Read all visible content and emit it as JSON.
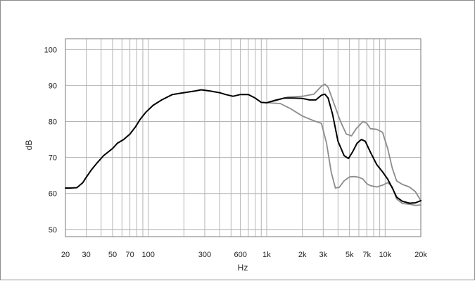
{
  "chart_data": {
    "type": "line",
    "title": "",
    "xlabel": "Hz",
    "ylabel": "dB",
    "x_scale": "log",
    "xlim": [
      20,
      20000
    ],
    "ylim": [
      48,
      103
    ],
    "grid": true,
    "legend": "none",
    "x_ticks": [
      {
        "value": 20,
        "label": "20"
      },
      {
        "value": 30,
        "label": "30"
      },
      {
        "value": 50,
        "label": "50"
      },
      {
        "value": 70,
        "label": "70"
      },
      {
        "value": 100,
        "label": "100"
      },
      {
        "value": 300,
        "label": "300"
      },
      {
        "value": 600,
        "label": "600"
      },
      {
        "value": 1000,
        "label": "1k"
      },
      {
        "value": 2000,
        "label": "2k"
      },
      {
        "value": 3000,
        "label": "3k"
      },
      {
        "value": 5000,
        "label": "5k"
      },
      {
        "value": 7000,
        "label": "7k"
      },
      {
        "value": 10000,
        "label": "10k"
      },
      {
        "value": 20000,
        "label": "20k"
      }
    ],
    "y_ticks": [
      {
        "value": 50,
        "label": "50"
      },
      {
        "value": 60,
        "label": "60"
      },
      {
        "value": 70,
        "label": "70"
      },
      {
        "value": 80,
        "label": "80"
      },
      {
        "value": 90,
        "label": "90"
      },
      {
        "value": 100,
        "label": "100"
      }
    ],
    "series": [
      {
        "color": "#8c8c8c",
        "points": [
          [
            1000,
            85.2
          ],
          [
            1200,
            85.8
          ],
          [
            1500,
            86.8
          ],
          [
            2000,
            87.0
          ],
          [
            2500,
            87.6
          ],
          [
            2900,
            89.8
          ],
          [
            3100,
            90.4
          ],
          [
            3300,
            89.5
          ],
          [
            3700,
            85.0
          ],
          [
            4200,
            80.0
          ],
          [
            4700,
            76.5
          ],
          [
            5200,
            76.0
          ],
          [
            5700,
            78.0
          ],
          [
            6500,
            80.0
          ],
          [
            7000,
            79.5
          ],
          [
            7500,
            78.0
          ],
          [
            8500,
            77.8
          ],
          [
            9500,
            77.0
          ],
          [
            10500,
            72.5
          ],
          [
            11500,
            67.0
          ],
          [
            12500,
            63.5
          ],
          [
            14000,
            62.5
          ],
          [
            16000,
            61.8
          ],
          [
            18000,
            60.5
          ],
          [
            20000,
            58.0
          ]
        ]
      },
      {
        "color": "#8c8c8c",
        "points": [
          [
            1000,
            85.2
          ],
          [
            1300,
            85.0
          ],
          [
            1600,
            83.5
          ],
          [
            2000,
            81.5
          ],
          [
            2500,
            80.2
          ],
          [
            2900,
            79.5
          ],
          [
            3200,
            74.0
          ],
          [
            3500,
            66.0
          ],
          [
            3800,
            61.5
          ],
          [
            4100,
            61.7
          ],
          [
            4500,
            63.5
          ],
          [
            5000,
            64.6
          ],
          [
            5500,
            64.7
          ],
          [
            6000,
            64.5
          ],
          [
            6500,
            64.0
          ],
          [
            7000,
            62.7
          ],
          [
            7500,
            62.2
          ],
          [
            8500,
            61.8
          ],
          [
            9500,
            62.3
          ],
          [
            10500,
            63.0
          ],
          [
            11500,
            61.8
          ],
          [
            12500,
            58.5
          ],
          [
            14000,
            57.2
          ],
          [
            16000,
            57.0
          ],
          [
            18000,
            56.7
          ],
          [
            20000,
            56.8
          ]
        ]
      },
      {
        "color": "#000000",
        "points": [
          [
            20,
            61.5
          ],
          [
            22,
            61.5
          ],
          [
            25,
            61.6
          ],
          [
            28,
            63.0
          ],
          [
            30,
            64.5
          ],
          [
            33,
            66.5
          ],
          [
            37,
            68.5
          ],
          [
            42,
            70.5
          ],
          [
            50,
            72.5
          ],
          [
            55,
            74.0
          ],
          [
            62,
            75.0
          ],
          [
            70,
            76.5
          ],
          [
            78,
            78.5
          ],
          [
            85,
            80.5
          ],
          [
            95,
            82.5
          ],
          [
            110,
            84.5
          ],
          [
            130,
            86.0
          ],
          [
            160,
            87.5
          ],
          [
            200,
            88.0
          ],
          [
            250,
            88.5
          ],
          [
            280,
            88.8
          ],
          [
            330,
            88.5
          ],
          [
            400,
            88.0
          ],
          [
            450,
            87.5
          ],
          [
            520,
            87.0
          ],
          [
            600,
            87.5
          ],
          [
            700,
            87.5
          ],
          [
            800,
            86.5
          ],
          [
            900,
            85.3
          ],
          [
            1000,
            85.2
          ],
          [
            1150,
            85.8
          ],
          [
            1400,
            86.5
          ],
          [
            1700,
            86.5
          ],
          [
            2000,
            86.4
          ],
          [
            2300,
            86.0
          ],
          [
            2600,
            86.0
          ],
          [
            2900,
            87.3
          ],
          [
            3100,
            87.6
          ],
          [
            3300,
            86.5
          ],
          [
            3600,
            82.0
          ],
          [
            4000,
            74.5
          ],
          [
            4500,
            70.5
          ],
          [
            4900,
            69.7
          ],
          [
            5300,
            71.5
          ],
          [
            5800,
            74.0
          ],
          [
            6300,
            75.0
          ],
          [
            6800,
            74.5
          ],
          [
            7500,
            71.5
          ],
          [
            8500,
            68.0
          ],
          [
            9500,
            66.0
          ],
          [
            10500,
            64.0
          ],
          [
            11500,
            61.5
          ],
          [
            12500,
            59.0
          ],
          [
            14000,
            57.8
          ],
          [
            16000,
            57.3
          ],
          [
            18000,
            57.4
          ],
          [
            20000,
            58.0
          ]
        ]
      }
    ]
  }
}
